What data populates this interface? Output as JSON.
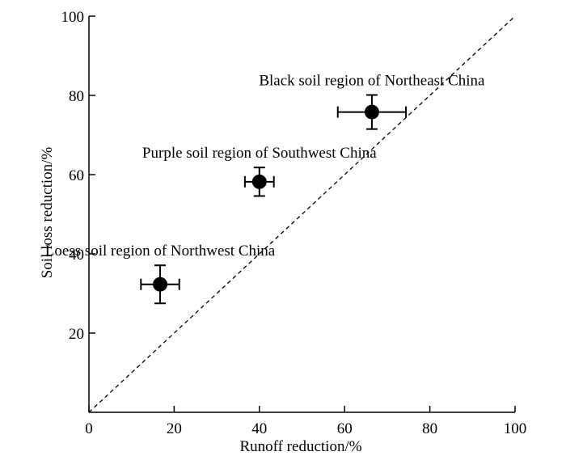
{
  "chart_data": {
    "type": "scatter",
    "title": "",
    "xlabel": "Runoff reduction/%",
    "ylabel": "Soil loss reduction/%",
    "xlim": [
      0,
      100
    ],
    "ylim": [
      0,
      100
    ],
    "xticks": [
      0,
      20,
      40,
      60,
      80,
      100
    ],
    "yticks": [
      20,
      40,
      60,
      80,
      100
    ],
    "grid": false,
    "reference_line": {
      "style": "dashed",
      "from": [
        0,
        0
      ],
      "to": [
        100,
        100
      ]
    },
    "points": [
      {
        "label": "Loess soil region of Northwest China",
        "x": 16.7,
        "y": 32.3,
        "x_err": 4.5,
        "y_err": 4.8
      },
      {
        "label": "Purple soil region of Southwest China",
        "x": 40.0,
        "y": 58.2,
        "x_err": 3.4,
        "y_err": 3.6
      },
      {
        "label": "Black soil region of Northeast China",
        "x": 66.4,
        "y": 75.8,
        "x_err": 8.0,
        "y_err": 4.3
      }
    ],
    "colors": {
      "marker": "#000000",
      "axis": "#000000"
    }
  }
}
